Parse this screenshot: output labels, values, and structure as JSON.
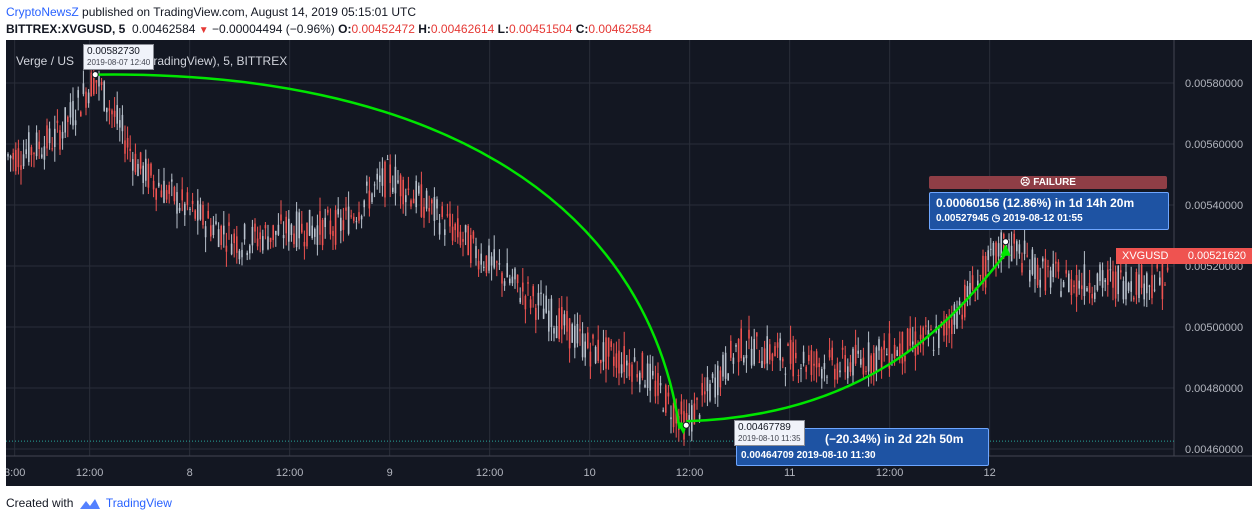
{
  "header": {
    "publisher": "CryptoNewsZ",
    "text": " published on TradingView.com, August 14, 2019 05:15:01 UTC"
  },
  "ohlc": {
    "symbol": "BITTREX:XVGUSD, 5",
    "last": "0.00462584",
    "change": "−0.00004494 (−0.96%)",
    "o_label": "O:",
    "o": "0.00452472",
    "h_label": "H:",
    "h": "0.00462614",
    "l_label": "L:",
    "l": "0.00451504",
    "c_label": "C:",
    "c": "0.00462584"
  },
  "series_title": "Verge / US",
  "series_title_tail": "ed by TradingView), 5, BITTREX",
  "tooltips": {
    "high_price": "0.00582730",
    "high_date": "2019-08-07 12:40",
    "low_price": "0.00467789",
    "low_date": "2019-08-10 11:35"
  },
  "callouts": {
    "down_text": "(−20.34%) in 2d 22h 50m",
    "down_sub": "0.00464709  2019-08-10  11:30",
    "up_text": "0.00060156 (12.86%) in 1d 14h 20m",
    "up_sub_price": "0.00527945",
    "up_sub_date": "2019-08-12  01:55",
    "failure": "☹ FAILURE"
  },
  "price_tag": {
    "symbol": "XVGUSD",
    "value": "0.00521620"
  },
  "footer": {
    "created": "Created with",
    "brand": "TradingView"
  },
  "colors": {
    "background": "#131722",
    "up_candle": "#b8c1cc",
    "down_candle": "#ef5350",
    "projection_line": "#00e600",
    "grid": "#2a2e39",
    "callout": "#1e53a3",
    "price_tag": "#ef5350"
  },
  "chart_data": {
    "type": "line",
    "title": "Verge / US",
    "symbol": "BITTREX:XVGUSD",
    "interval": "5",
    "exchange": "BITTREX",
    "x_ticks": [
      "3:00",
      "12:00",
      "8",
      "12:00",
      "9",
      "12:00",
      "10",
      "12:00",
      "11",
      "12:00",
      "12"
    ],
    "y_ticks": [
      "0.00580000",
      "0.00560000",
      "0.00540000",
      "0.00520000",
      "0.00500000",
      "0.00480000",
      "0.00460000"
    ],
    "ylim": [
      0.00455,
      0.00595
    ],
    "grid": true,
    "series": [
      {
        "x": [
          "2019-08-07 03:00",
          "2019-08-07 08:00",
          "2019-08-07 12:40",
          "2019-08-07 18:00",
          "2019-08-08 00:00",
          "2019-08-08 06:00",
          "2019-08-08 12:00",
          "2019-08-08 18:00",
          "2019-08-09 00:00",
          "2019-08-09 06:00",
          "2019-08-09 12:00",
          "2019-08-09 18:00",
          "2019-08-10 00:00",
          "2019-08-10 06:00",
          "2019-08-10 11:35",
          "2019-08-10 18:00",
          "2019-08-11 00:00",
          "2019-08-11 06:00",
          "2019-08-11 12:00",
          "2019-08-11 18:00",
          "2019-08-12 01:55",
          "2019-08-12 06:00",
          "2019-08-12 09:00"
        ],
        "values": [
          0.00556,
          0.00562,
          0.00582,
          0.00552,
          0.00538,
          0.00528,
          0.00532,
          0.00533,
          0.0055,
          0.00536,
          0.00521,
          0.00507,
          0.00493,
          0.00487,
          0.00468,
          0.00494,
          0.0049,
          0.00487,
          0.00492,
          0.00497,
          0.00528,
          0.00518,
          0.00515
        ]
      }
    ],
    "projections": [
      {
        "label": "(−20.34%) in 2d 22h 50m",
        "from": [
          "2019-08-07 12:40",
          0.0058273
        ],
        "to": [
          "2019-08-10 11:30",
          0.00464709
        ]
      },
      {
        "label": "0.00060156 (12.86%) in 1d 14h 20m",
        "from": [
          "2019-08-10 11:35",
          0.00467789
        ],
        "to": [
          "2019-08-12 01:55",
          0.00527945
        ]
      }
    ],
    "last_price_line": 0.00462584,
    "last_price_label": "0.00521620"
  }
}
